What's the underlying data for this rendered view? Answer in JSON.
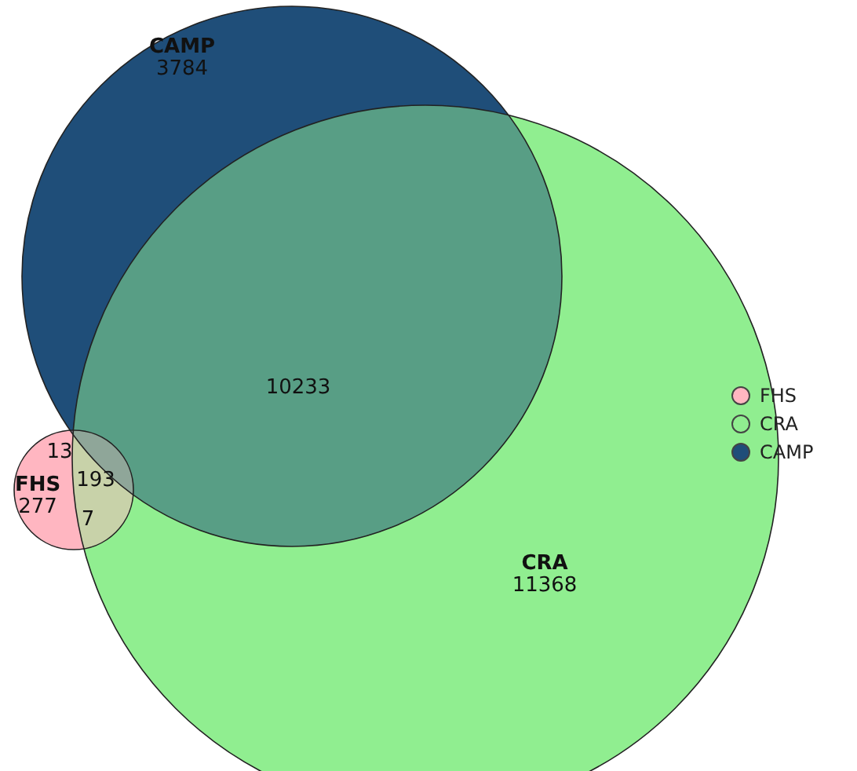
{
  "chart_data": {
    "type": "other",
    "data_labels": true,
    "categories": [
      "FHS",
      "CRA",
      "CAMP"
    ],
    "values": [
      277,
      11368,
      3784
    ],
    "colors": [
      "#ffb6c1",
      "#90ee90",
      "#1f4e79"
    ],
    "annotations": [
      "10233",
      "13",
      "7",
      "193"
    ]
  }
}
